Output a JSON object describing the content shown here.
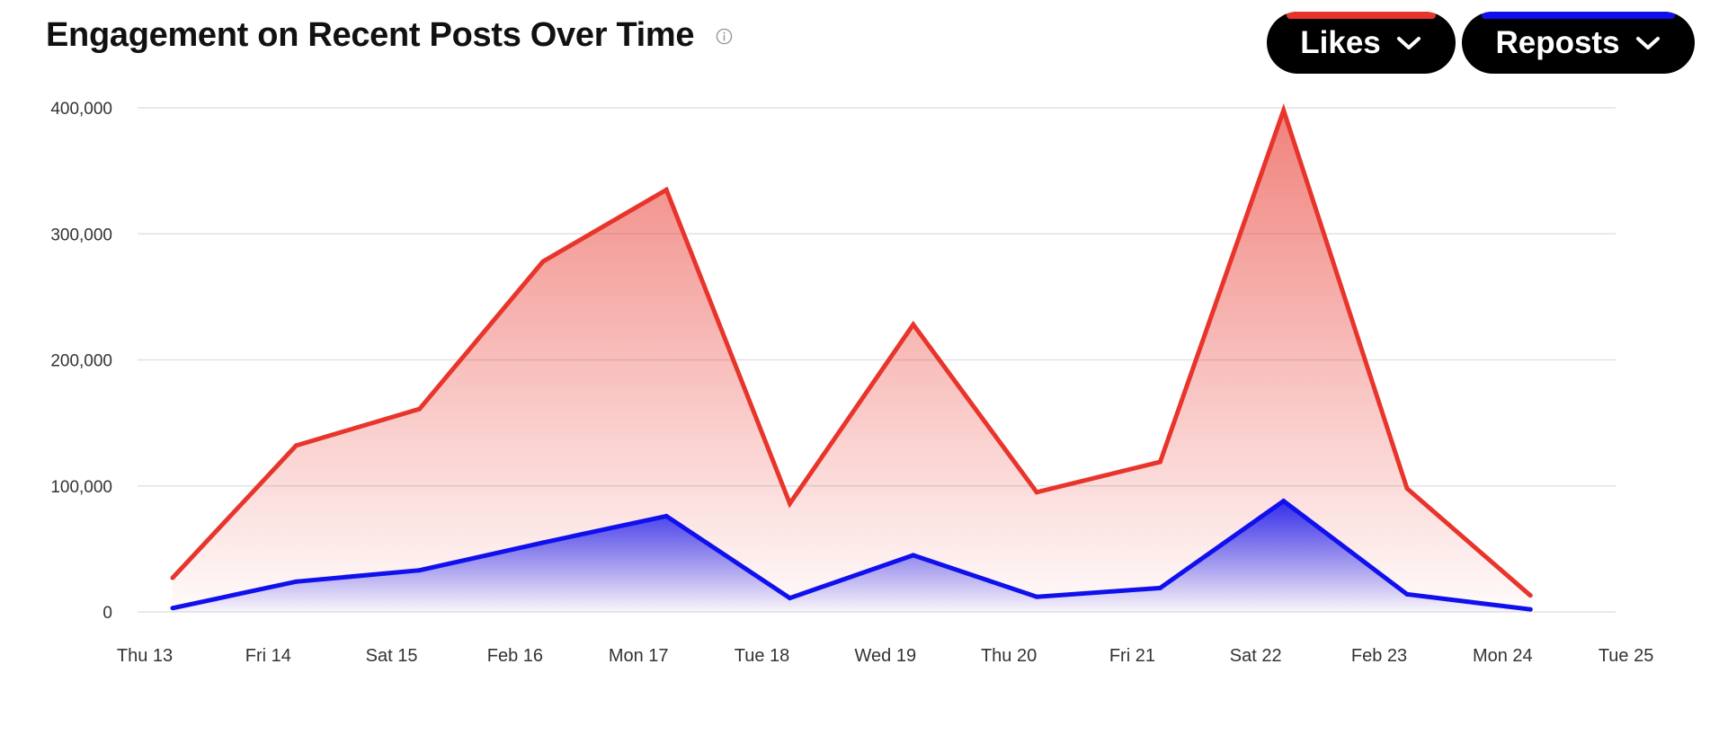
{
  "header": {
    "title": "Engagement on Recent Posts Over Time"
  },
  "controls": [
    {
      "label": "Likes",
      "color": "#e8352c",
      "icon": "chevron-down-icon"
    },
    {
      "label": "Reposts",
      "color": "#1010ee",
      "icon": "chevron-down-icon"
    }
  ],
  "chart_data": {
    "type": "area",
    "title": "Engagement on Recent Posts Over Time",
    "xlabel": "",
    "ylabel": "",
    "x_ticks": [
      "Thu 13",
      "Fri 14",
      "Sat 15",
      "Feb 16",
      "Mon 17",
      "Tue 18",
      "Wed 19",
      "Thu 20",
      "Fri 21",
      "Sat 22",
      "Feb 23",
      "Mon 24",
      "Tue 25"
    ],
    "y_ticks": [
      "0",
      "100,000",
      "200,000",
      "300,000",
      "400,000"
    ],
    "ylim": [
      0,
      400000
    ],
    "grid": true,
    "legend": "top-right",
    "series": [
      {
        "name": "Likes",
        "color": "#e8352c",
        "values": [
          27000,
          132000,
          161000,
          278000,
          335000,
          86000,
          228000,
          95000,
          119000,
          398000,
          98000,
          13000
        ]
      },
      {
        "name": "Reposts",
        "color": "#1010ee",
        "values": [
          3000,
          24000,
          33000,
          55000,
          76000,
          11000,
          45000,
          12000,
          19000,
          88000,
          14000,
          2000
        ]
      }
    ]
  }
}
